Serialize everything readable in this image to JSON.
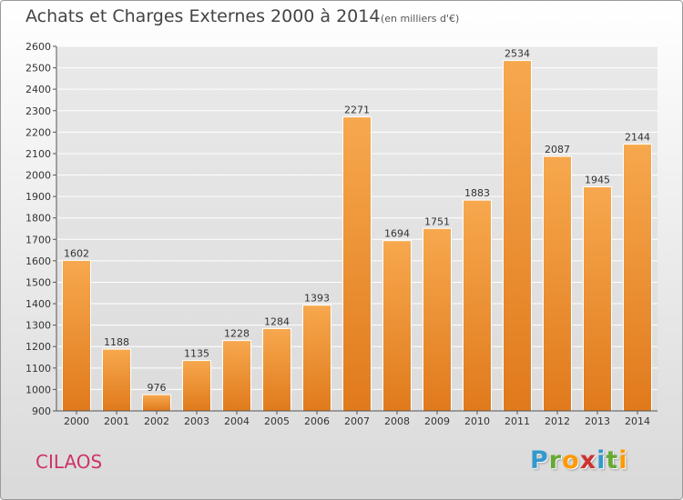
{
  "title": "Achats et Charges Externes 2000 à 2014",
  "subtitle": "(en milliers d'€)",
  "commune": "CILAOS",
  "logo": {
    "text": "Proxiti",
    "letters": [
      "P",
      "r",
      "o",
      "x",
      "i",
      "t",
      "i"
    ],
    "colors": [
      "#3399cc",
      "#66aa33",
      "#ff9900",
      "#cc3333",
      "#3399cc",
      "#66aa33",
      "#ff9900"
    ]
  },
  "colors": {
    "bar_top": "#f7a84e",
    "bar_bottom": "#e07a1c",
    "commune": "#cc3366",
    "grid": "#ffffff"
  },
  "chart_data": {
    "type": "bar",
    "title": "Achats et Charges Externes 2000 à 2014",
    "subtitle": "(en milliers d'€)",
    "xlabel": "",
    "ylabel": "",
    "categories": [
      "2000",
      "2001",
      "2002",
      "2003",
      "2004",
      "2005",
      "2006",
      "2007",
      "2008",
      "2009",
      "2010",
      "2011",
      "2012",
      "2013",
      "2014"
    ],
    "values": [
      1602,
      1188,
      976,
      1135,
      1228,
      1284,
      1393,
      2271,
      1694,
      1751,
      1883,
      2534,
      2087,
      1945,
      2144
    ],
    "ylim": [
      900,
      2600
    ],
    "yticks": [
      900,
      1000,
      1100,
      1200,
      1300,
      1400,
      1500,
      1600,
      1700,
      1800,
      1900,
      2000,
      2100,
      2200,
      2300,
      2400,
      2500,
      2600
    ],
    "grid": true,
    "data_labels": true
  }
}
